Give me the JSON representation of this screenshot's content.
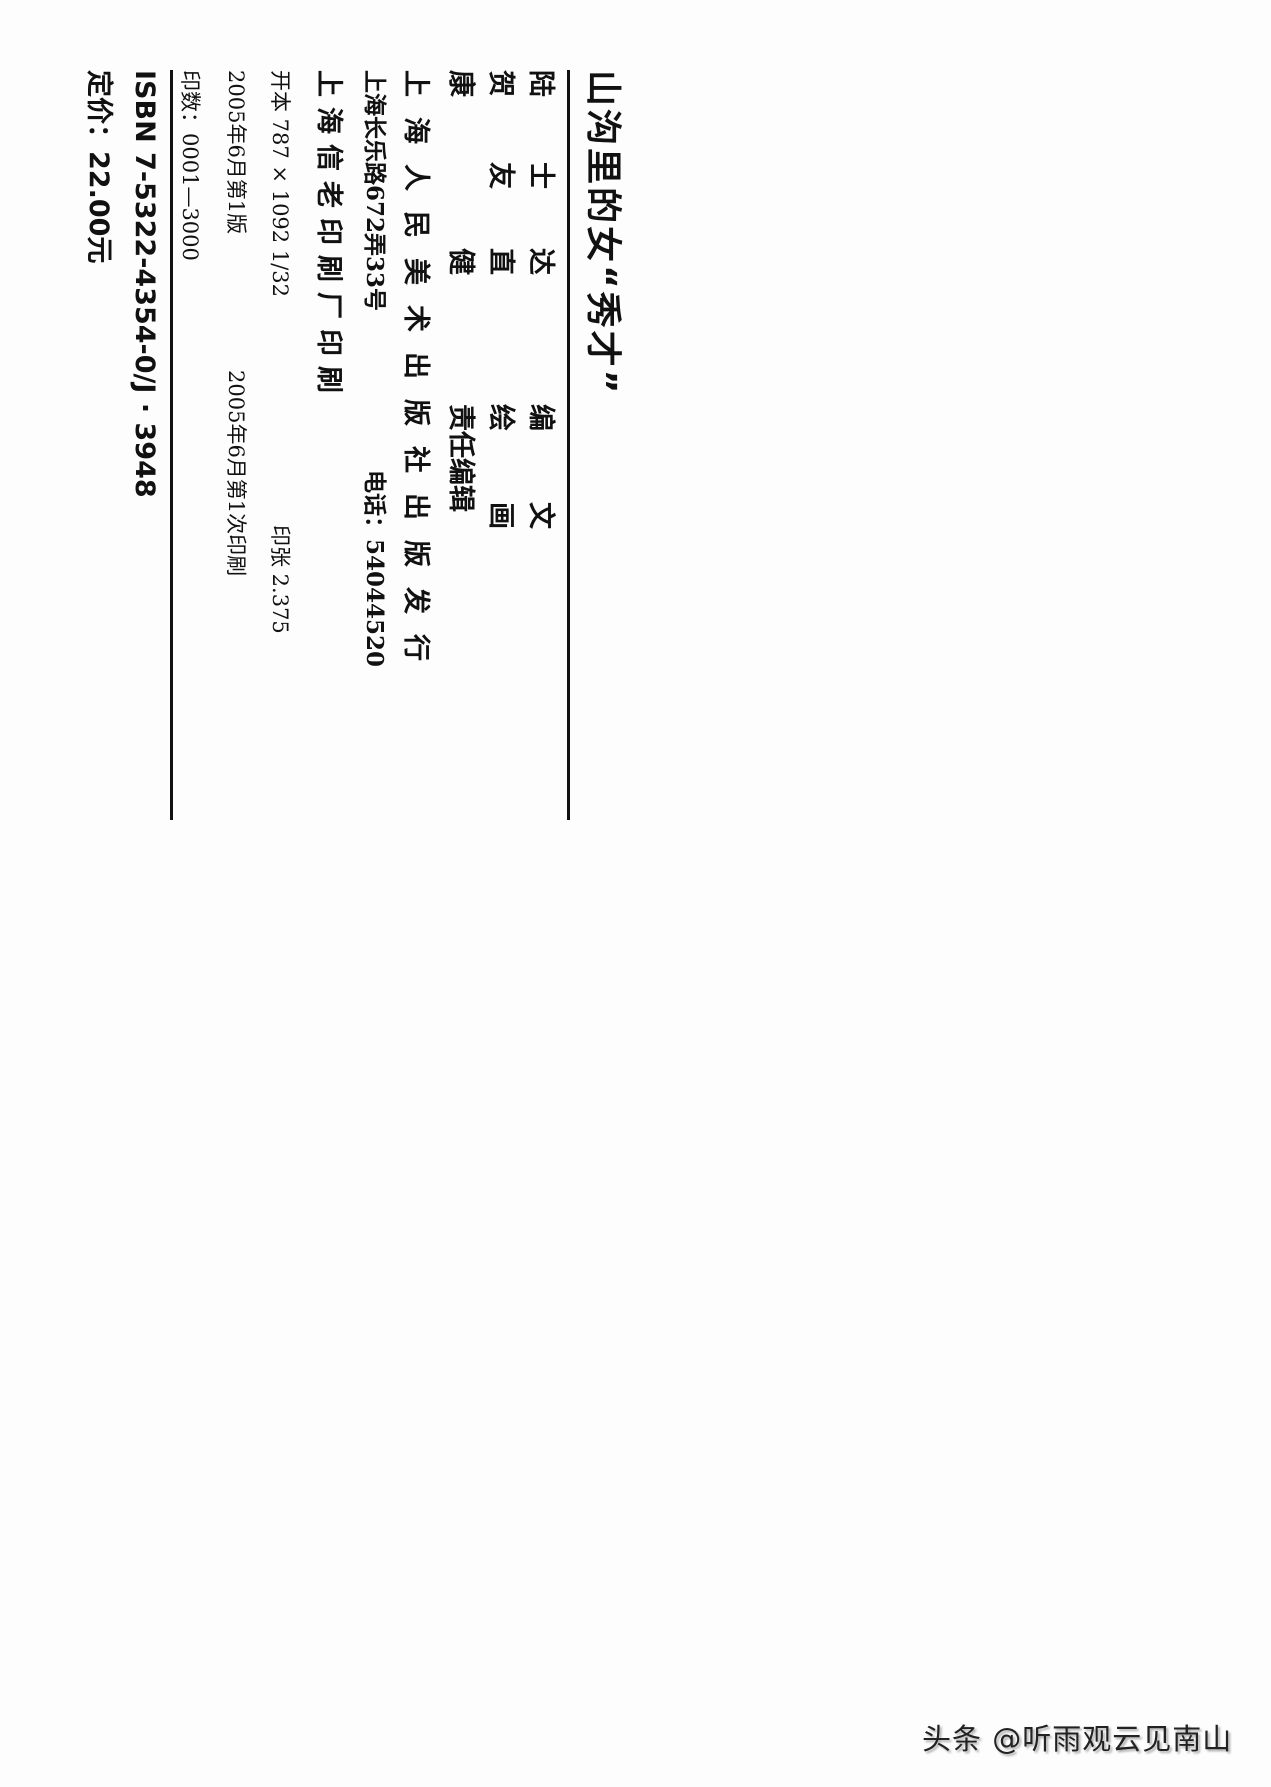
{
  "colophon": {
    "title": "山沟里的女“秀才”",
    "credits": [
      {
        "name_parts": [
          "陆",
          "士",
          "达"
        ],
        "role_parts": [
          "编",
          "文"
        ]
      },
      {
        "name_parts": [
          "贺",
          "友",
          "直"
        ],
        "role_parts": [
          "绘",
          "画"
        ]
      },
      {
        "name_parts": [
          "康",
          "健"
        ],
        "role": "责任编辑"
      }
    ],
    "publisher": "上海人民美术出版社出版发行",
    "address": "上海长乐路672弄33号",
    "phone": "电话：54044520",
    "printer": "上海信老印刷厂印刷",
    "format": "开本 787 × 1092 1/32",
    "sheets": "印张 2.375",
    "edition": "2005年6月第1版",
    "printing": "2005年6月第1次印刷",
    "print_run": "印数：0001—3000",
    "isbn": "ISBN 7-5322-4354-0/J · 3948",
    "price": "定价：22.00元"
  },
  "watermark": "头条 @听雨观云见南山"
}
